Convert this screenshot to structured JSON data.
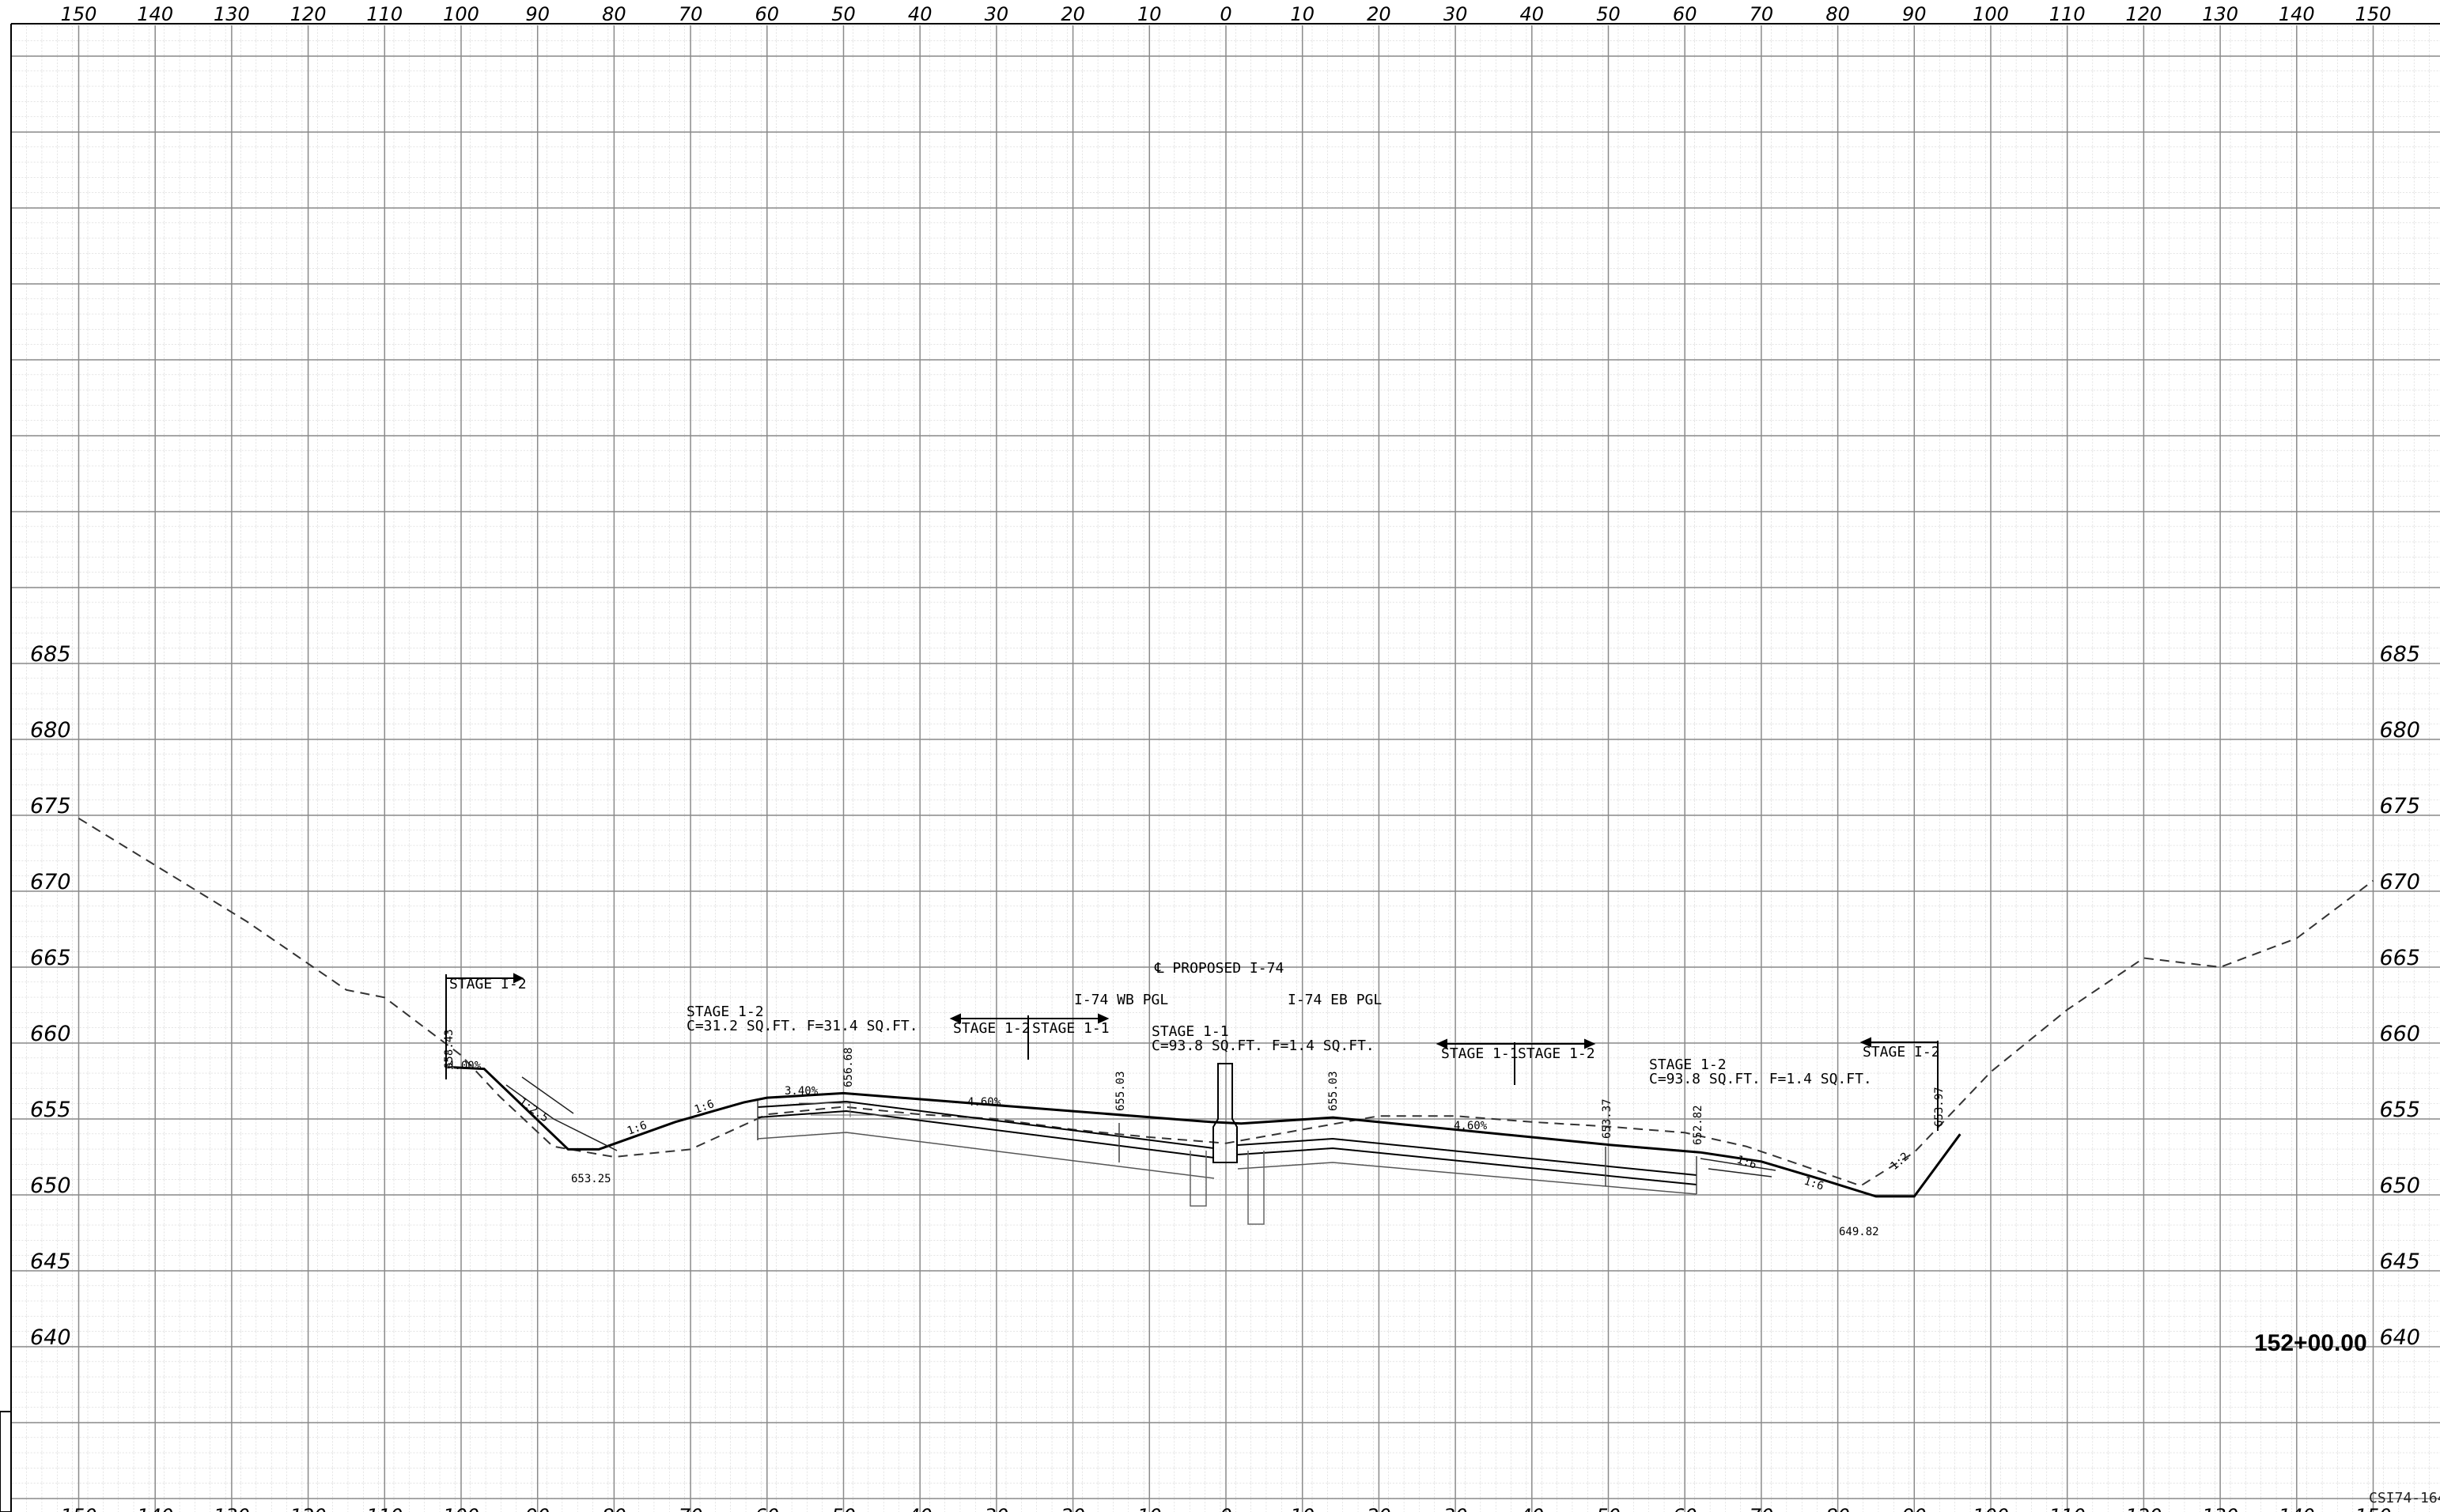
{
  "sheet": {
    "station_label": "152+00.00",
    "sheet_id": "CSI74-164",
    "centerline_label": "℄ PROPOSED I-74",
    "wb_pgl_label": "I-74 WB PGL",
    "eb_pgl_label": "I-74 EB PGL"
  },
  "axes": {
    "offset_ticks": [
      "150",
      "140",
      "130",
      "120",
      "110",
      "100",
      "90",
      "80",
      "70",
      "60",
      "50",
      "40",
      "30",
      "20",
      "10",
      "0",
      "10",
      "20",
      "30",
      "40",
      "50",
      "60",
      "70",
      "80",
      "90",
      "100",
      "110",
      "120",
      "130",
      "140",
      "150"
    ],
    "offset_values": [
      -150,
      -140,
      -130,
      -120,
      -110,
      -100,
      -90,
      -80,
      -70,
      -60,
      -50,
      -40,
      -30,
      -20,
      -10,
      0,
      10,
      20,
      30,
      40,
      50,
      60,
      70,
      80,
      90,
      100,
      110,
      120,
      130,
      140,
      150
    ],
    "elevation_ticks": [
      "685",
      "680",
      "675",
      "670",
      "665",
      "660",
      "655",
      "650",
      "645",
      "640"
    ],
    "elevation_values": [
      685,
      680,
      675,
      670,
      665,
      660,
      655,
      650,
      645,
      640
    ]
  },
  "annotations": {
    "stage_12_left": "STAGE I-2",
    "quantities_left_title": "STAGE 1-2",
    "quantities_left": "C=31.2 SQ.FT.  F=31.4 SQ.FT.",
    "stage_12_center_left": "STAGE 1-2",
    "stage_11_center_left": "STAGE 1-1",
    "quantities_center_title": "STAGE 1-1",
    "quantities_center": "C=93.8 SQ.FT.  F=1.4 SQ.FT.",
    "stage_11_center_right": "STAGE 1-1",
    "stage_12_center_right": "STAGE 1-2",
    "quantities_right_title": "STAGE 1-2",
    "quantities_right": "C=93.8 SQ.FT.  F=1.4 SQ.FT.",
    "stage_12_right": "STAGE I-2",
    "elev_658_43": "658.43",
    "elev_656_68": "656.68",
    "elev_655_03_left": "655.03",
    "elev_655_03_right": "655.03",
    "elev_653_37": "653.37",
    "elev_652_82": "652.82",
    "elev_653_97": "653.97",
    "elev_653_25": "653.25",
    "elev_649_82": "649.82",
    "slope_4_00": "4.00%",
    "slope_3_40": "3.40%",
    "slope_4_60_left": "4.60%",
    "slope_4_60_right": "4.60%",
    "slope_1_2_5": "1:2.5",
    "slope_1_6_a": "1:6",
    "slope_1_6_b": "1:6",
    "slope_1_6_c": "1:6",
    "slope_1_6_d": "1:6",
    "slope_1_2": "1:2"
  },
  "chart_data": {
    "type": "line",
    "xlabel": "",
    "ylabel": "",
    "xlim": [
      -150,
      150
    ],
    "ylim": [
      640,
      685
    ],
    "series": [
      {
        "style": "dashed",
        "points": [
          [
            -150,
            674.8
          ],
          [
            -128,
            668
          ],
          [
            -115,
            663.5
          ],
          [
            -110,
            663
          ],
          [
            -100,
            659.2
          ],
          [
            -95,
            656.5
          ],
          [
            -88,
            653.2
          ],
          [
            -80,
            652.5
          ],
          [
            -70,
            653
          ],
          [
            -60,
            655.3
          ],
          [
            -50,
            655.8
          ],
          [
            -40,
            655.3
          ],
          [
            -30,
            655
          ],
          [
            -20,
            654.3
          ],
          [
            -10,
            653.8
          ],
          [
            0,
            653.4
          ],
          [
            10,
            654.3
          ],
          [
            20,
            655.2
          ],
          [
            30,
            655.2
          ],
          [
            40,
            654.8
          ],
          [
            50,
            654.5
          ],
          [
            60,
            654.1
          ],
          [
            68,
            653.2
          ],
          [
            75,
            652
          ],
          [
            83,
            650.6
          ],
          [
            90,
            652.8
          ],
          [
            100,
            658.1
          ],
          [
            110,
            662.2
          ],
          [
            120,
            665.6
          ],
          [
            130,
            665
          ],
          [
            140,
            666.9
          ],
          [
            150,
            670.7
          ]
        ]
      },
      {
        "style": "solid",
        "points": [
          [
            -101,
            658.4
          ],
          [
            -97,
            658.3
          ],
          [
            -86,
            653
          ],
          [
            -82,
            653
          ],
          [
            -72,
            654.8
          ],
          [
            -63,
            656.1
          ],
          [
            -60,
            656.4
          ],
          [
            -50,
            656.7
          ],
          [
            -2,
            654.8
          ],
          [
            2,
            654.7
          ],
          [
            14,
            655.1
          ],
          [
            50,
            653.3
          ],
          [
            62,
            652.8
          ],
          [
            70,
            652.2
          ],
          [
            78,
            651
          ],
          [
            85,
            649.9
          ],
          [
            90,
            649.9
          ],
          [
            96,
            654
          ]
        ]
      }
    ]
  }
}
